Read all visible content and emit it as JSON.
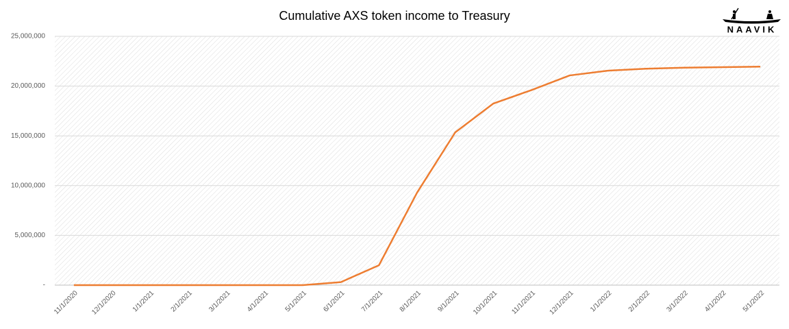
{
  "chart_data": {
    "type": "line",
    "title": "Cumulative AXS token income to Treasury",
    "logo": "NAAVIK",
    "categories": [
      "11/1/2020",
      "12/1/2020",
      "1/1/2021",
      "2/1/2021",
      "3/1/2021",
      "4/1/2021",
      "5/1/2021",
      "6/1/2021",
      "7/1/2021",
      "8/1/2021",
      "9/1/2021",
      "10/1/2021",
      "11/1/2021",
      "12/1/2021",
      "1/1/2022",
      "2/1/2022",
      "3/1/2022",
      "4/1/2022",
      "5/1/2022"
    ],
    "values": [
      0,
      0,
      0,
      0,
      0,
      0,
      0,
      300000,
      2000000,
      9300000,
      15350000,
      18250000,
      19600000,
      21070000,
      21550000,
      21750000,
      21850000,
      21900000,
      21950000
    ],
    "color": "#ed7d31",
    "ylim": [
      0,
      25000000
    ],
    "yticks": [
      {
        "value": 0,
        "label": "-"
      },
      {
        "value": 5000000,
        "label": "5,000,000"
      },
      {
        "value": 10000000,
        "label": "10,000,000"
      },
      {
        "value": 15000000,
        "label": "15,000,000"
      },
      {
        "value": 20000000,
        "label": "20,000,000"
      },
      {
        "value": 25000000,
        "label": "25,000,000"
      }
    ],
    "grid": true
  }
}
